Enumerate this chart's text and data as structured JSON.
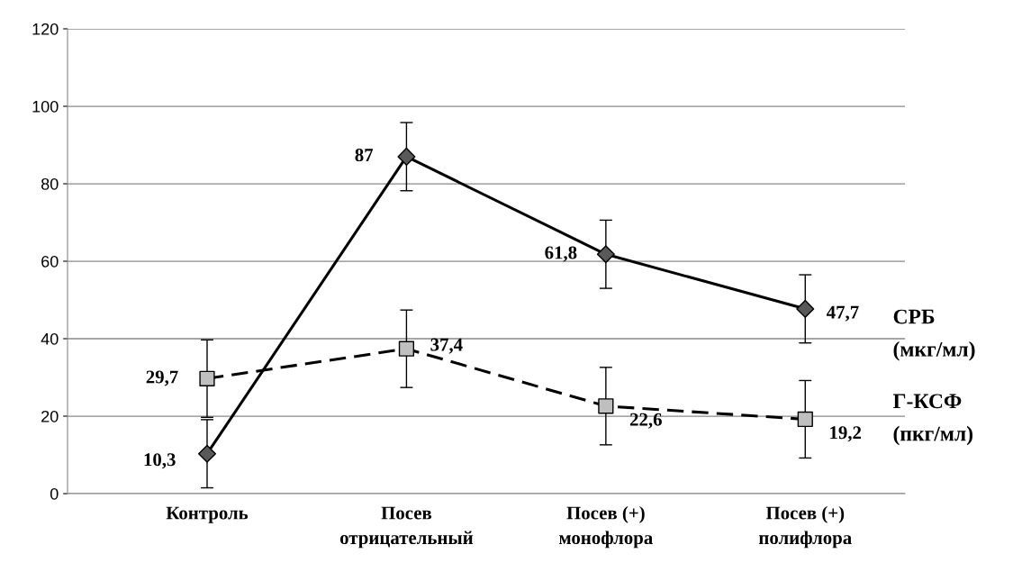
{
  "chart_data": {
    "type": "line",
    "categories": [
      "Контроль",
      "Посев\nотрицательный",
      "Посев (+)\nмонофлора",
      "Посев (+)\nполифлора"
    ],
    "series": [
      {
        "name": "СРБ\n(мкг/мл)",
        "color": "#000000",
        "colors": [
          "#595959",
          "#595959",
          "#595959",
          "#595959"
        ],
        "marker": "diamond",
        "line_style": "solid",
        "values": [
          10.3,
          87,
          61.8,
          47.7
        ],
        "errors": [
          8.8,
          8.8,
          8.8,
          8.8
        ],
        "value_labels": [
          "10,3",
          "87",
          "61,8",
          "47,7"
        ]
      },
      {
        "name": "Г-КСФ\n(пкг/мл)",
        "color": "#000000",
        "colors": [
          "#bfbfbf",
          "#bfbfbf",
          "#bfbfbf",
          "#bfbfbf"
        ],
        "marker": "square",
        "line_style": "dashed",
        "values": [
          29.7,
          37.4,
          22.6,
          19.2
        ],
        "errors": [
          10,
          10,
          10,
          10
        ],
        "value_labels": [
          "29,7",
          "37,4",
          "22,6",
          "19,2"
        ]
      }
    ],
    "ylim": [
      0,
      120
    ],
    "yticks": [
      0,
      20,
      40,
      60,
      80,
      100,
      120
    ],
    "grid": "y",
    "legend": false
  }
}
